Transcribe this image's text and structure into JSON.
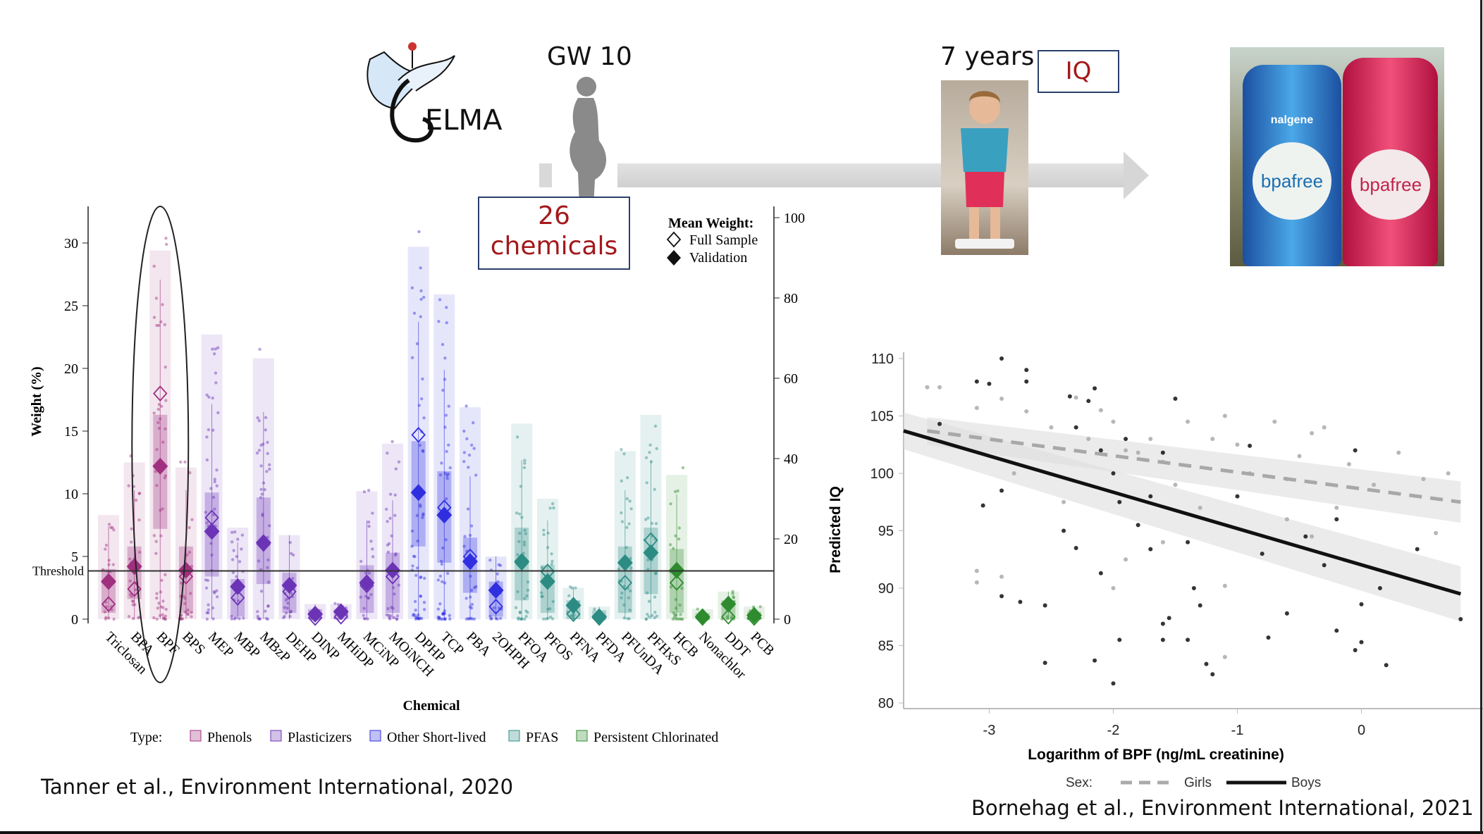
{
  "header": {
    "logo_text": "SELMA",
    "gw_label": "GW 10",
    "chemicals_count": "26",
    "chemicals_label": "chemicals",
    "age_label": "7 years",
    "outcome_label": "IQ",
    "bottle_brand": "nalgene",
    "bottle_label": "bpafree"
  },
  "citations": {
    "left": "Tanner et al., Environment International, 2020",
    "right": "Bornehag et al., Environment International, 2021"
  },
  "chart_data": [
    {
      "type": "bar",
      "title": "",
      "xlabel": "Chemical",
      "ylabel": "Weight (%)",
      "ylim": [
        0,
        33
      ],
      "yticks": [
        0,
        5,
        10,
        15,
        20,
        25,
        30
      ],
      "y2ticks": [
        0,
        20,
        40,
        60,
        80,
        100
      ],
      "threshold": 3.85,
      "threshold_label": "Threshold",
      "legend_markers": {
        "title": "Mean Weight:",
        "full": "Full Sample",
        "validation": "Validation"
      },
      "type_legend": {
        "title": "Type:",
        "items": [
          {
            "name": "Phenols",
            "color": "#a0307f"
          },
          {
            "name": "Plasticizers",
            "color": "#6b33b5"
          },
          {
            "name": "Other Short-lived",
            "color": "#2f2fe0"
          },
          {
            "name": "PFAS",
            "color": "#2c8c84"
          },
          {
            "name": "Persistent Chlorinated",
            "color": "#2e8b2e"
          }
        ]
      },
      "highlighted": "BPF",
      "categories": [
        "Triclosan",
        "BPA",
        "BPF",
        "BPS",
        "MEP",
        "MBP",
        "MBzP",
        "DEHP",
        "DINP",
        "MHiDP",
        "MCiNP",
        "MOiNCH",
        "DPHP",
        "TCP",
        "PBA",
        "2OHPH",
        "PFOA",
        "PFOS",
        "PFNA",
        "PFDA",
        "PFUnDA",
        "PFHxS",
        "HCB",
        "Nonachlor",
        "DDT",
        "PCB"
      ],
      "group": [
        0,
        0,
        0,
        0,
        1,
        1,
        1,
        1,
        1,
        1,
        1,
        1,
        2,
        2,
        2,
        2,
        3,
        3,
        3,
        3,
        3,
        3,
        4,
        4,
        4,
        4
      ],
      "full_sample_mean": [
        1.2,
        2.4,
        18.0,
        3.4,
        8.1,
        1.7,
        6.0,
        2.2,
        0.1,
        0.2,
        2.7,
        3.4,
        14.7,
        8.9,
        5.0,
        1.0,
        4.5,
        3.8,
        0.4,
        0.1,
        2.9,
        6.3,
        2.9,
        0.1,
        0.2,
        0.1
      ],
      "validation_mean": [
        3.0,
        4.2,
        12.2,
        3.9,
        7.0,
        2.6,
        6.1,
        2.7,
        0.4,
        0.6,
        2.9,
        3.9,
        10.1,
        8.3,
        4.6,
        2.3,
        4.6,
        3.0,
        1.1,
        0.2,
        4.5,
        5.3,
        3.9,
        0.2,
        1.2,
        0.3
      ],
      "max": [
        8.3,
        12.5,
        29.4,
        12.1,
        22.7,
        7.3,
        20.8,
        6.7,
        1.2,
        1.2,
        10.2,
        14.0,
        29.7,
        25.9,
        16.9,
        5.0,
        15.6,
        9.6,
        2.5,
        1.0,
        13.4,
        16.3,
        11.5,
        0.8,
        2.2,
        1.0
      ],
      "box": [
        [
          0.5,
          4.0
        ],
        [
          1.6,
          5.8
        ],
        [
          7.2,
          16.3
        ],
        [
          0.5,
          5.8
        ],
        [
          3.4,
          10.1
        ],
        [
          0.2,
          3.2
        ],
        [
          2.8,
          9.7
        ],
        [
          0.5,
          3.7
        ],
        [
          0,
          0.8
        ],
        [
          0,
          0.8
        ],
        [
          0.5,
          4.3
        ],
        [
          0.5,
          5.3
        ],
        [
          5.8,
          14.2
        ],
        [
          4.5,
          11.8
        ],
        [
          2.1,
          6.5
        ],
        [
          0.2,
          3.0
        ],
        [
          1.5,
          7.3
        ],
        [
          0.5,
          4.3
        ],
        [
          0,
          1.5
        ],
        [
          0,
          0.7
        ],
        [
          0.5,
          5.8
        ],
        [
          2.0,
          7.3
        ],
        [
          0.5,
          5.6
        ],
        [
          0,
          0.5
        ],
        [
          0,
          1.5
        ],
        [
          0,
          0.6
        ]
      ]
    },
    {
      "type": "scatter",
      "title": "",
      "xlabel": "Logarithm of BPF (ng/mL creatinine)",
      "ylabel": "Predicted IQ",
      "xlim": [
        -3.69,
        0.98
      ],
      "ylim": [
        80,
        110
      ],
      "xticks": [
        -3,
        -2,
        -1,
        0
      ],
      "yticks": [
        80,
        85,
        90,
        95,
        100,
        105,
        110
      ],
      "legend": {
        "title": "Sex:",
        "placement": "bottom"
      },
      "series": [
        {
          "name": "Girls",
          "color": "#aaaaaa",
          "line": {
            "x": [
              -3.5,
              0.8
            ],
            "y": [
              103.7,
              97.5
            ],
            "ci": 1.2,
            "style": "dashed"
          },
          "points": [
            [
              -3.5,
              107.5
            ],
            [
              -3.4,
              107.5
            ],
            [
              -3.1,
              105.7
            ],
            [
              -2.9,
              106.5
            ],
            [
              -2.7,
              105.4
            ],
            [
              -2.5,
              104
            ],
            [
              -2.3,
              106.6
            ],
            [
              -2.2,
              103
            ],
            [
              -2.1,
              105.5
            ],
            [
              -2.0,
              104.5
            ],
            [
              -1.9,
              102
            ],
            [
              -1.8,
              101.8
            ],
            [
              -1.7,
              103
            ],
            [
              -1.6,
              101
            ],
            [
              -1.5,
              99
            ],
            [
              -1.4,
              104.5
            ],
            [
              -1.2,
              103
            ],
            [
              -1.1,
              105
            ],
            [
              -1.0,
              102.5
            ],
            [
              -0.9,
              100
            ],
            [
              -0.7,
              104.5
            ],
            [
              -0.6,
              99.5
            ],
            [
              -0.5,
              101.5
            ],
            [
              -0.4,
              103.5
            ],
            [
              -0.3,
              104
            ],
            [
              -0.2,
              97
            ],
            [
              -0.1,
              100.8
            ],
            [
              0.1,
              99
            ],
            [
              0.3,
              101.8
            ],
            [
              0.5,
              99.5
            ],
            [
              0.7,
              100
            ],
            [
              -3.1,
              91.5
            ],
            [
              -3.1,
              90.5
            ],
            [
              -2.9,
              91
            ],
            [
              -2.0,
              90
            ],
            [
              -1.9,
              92.5
            ],
            [
              -1.6,
              94
            ],
            [
              -1.1,
              90.2
            ],
            [
              -1.1,
              84
            ],
            [
              -0.6,
              96
            ],
            [
              -0.4,
              94.5
            ],
            [
              -2.4,
              97.5
            ],
            [
              -2.8,
              100
            ],
            [
              -1.3,
              97
            ],
            [
              0.6,
              94.8
            ]
          ]
        },
        {
          "name": "Boys",
          "color": "#111111",
          "line": {
            "x": [
              -3.69,
              0.8
            ],
            "y": [
              103.7,
              89.5
            ],
            "ci": 1.6,
            "style": "solid"
          },
          "points": [
            [
              -3.4,
              104.3
            ],
            [
              -3.1,
              108
            ],
            [
              -3.0,
              107.8
            ],
            [
              -2.9,
              110
            ],
            [
              -2.7,
              109
            ],
            [
              -2.7,
              108
            ],
            [
              -2.9,
              98.5
            ],
            [
              -3.05,
              97.2
            ],
            [
              -2.9,
              89.3
            ],
            [
              -2.75,
              88.8
            ],
            [
              -2.55,
              88.5
            ],
            [
              -2.55,
              83.5
            ],
            [
              -2.35,
              106.7
            ],
            [
              -2.3,
              104
            ],
            [
              -2.2,
              106.3
            ],
            [
              -2.15,
              107.4
            ],
            [
              -2.1,
              102
            ],
            [
              -2.0,
              100
            ],
            [
              -1.95,
              97.5
            ],
            [
              -1.9,
              103
            ],
            [
              -1.8,
              95.5
            ],
            [
              -1.7,
              98
            ],
            [
              -1.6,
              101.8
            ],
            [
              -1.5,
              106.5
            ],
            [
              -1.4,
              94
            ],
            [
              -1.35,
              90
            ],
            [
              -1.3,
              88.5
            ],
            [
              -1.25,
              83.4
            ],
            [
              -1.2,
              82.5
            ],
            [
              -2.15,
              83.7
            ],
            [
              -2.0,
              81.7
            ],
            [
              -1.95,
              85.5
            ],
            [
              -1.6,
              85.5
            ],
            [
              -1.4,
              85.5
            ],
            [
              -1.0,
              98
            ],
            [
              -0.9,
              102.4
            ],
            [
              -0.8,
              93
            ],
            [
              -0.75,
              85.7
            ],
            [
              -0.6,
              87.8
            ],
            [
              -0.45,
              94.5
            ],
            [
              -0.3,
              92
            ],
            [
              -0.2,
              96
            ],
            [
              -0.2,
              86.3
            ],
            [
              -0.05,
              102
            ],
            [
              -0.05,
              84.6
            ],
            [
              0,
              88.6
            ],
            [
              0,
              85.3
            ],
            [
              0.15,
              90
            ],
            [
              0.2,
              83.3
            ],
            [
              0.45,
              93.4
            ],
            [
              0.8,
              87.3
            ],
            [
              -2.4,
              95
            ],
            [
              -2.3,
              93.5
            ],
            [
              -2.1,
              91.3
            ],
            [
              -1.7,
              93.4
            ],
            [
              -1.55,
              87.4
            ],
            [
              -1.6,
              86.9
            ]
          ]
        }
      ]
    }
  ]
}
